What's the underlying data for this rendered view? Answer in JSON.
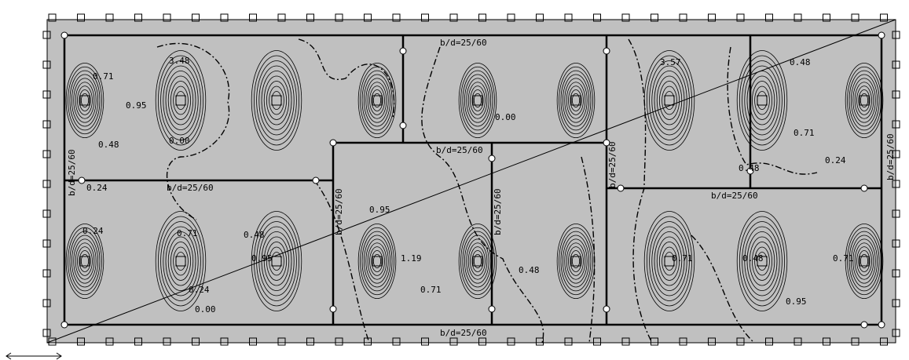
{
  "beam_labels": [
    "b/d=25/60",
    "b/d=25/60",
    "b/d=25/60",
    "b/d=25/60",
    "b/d=25/60",
    "b/d=25/60",
    "b/d=25/60",
    "b/d=25/60",
    "b/d=25/60",
    "b/d=25/60"
  ],
  "contour_labels": [
    "3.48",
    "0.95",
    "0.71",
    "0.48",
    "0.00",
    "0.24",
    "0.71",
    "0.95",
    "0.48",
    "0.24",
    "0.00",
    "0.95",
    "1.19",
    "0.71",
    "0.48",
    "0.00",
    "3.57",
    "0.48",
    "0.71",
    "0.24",
    "0.71",
    "0.48",
    "0.95",
    "0.24",
    "0.71",
    "0.48"
  ]
}
